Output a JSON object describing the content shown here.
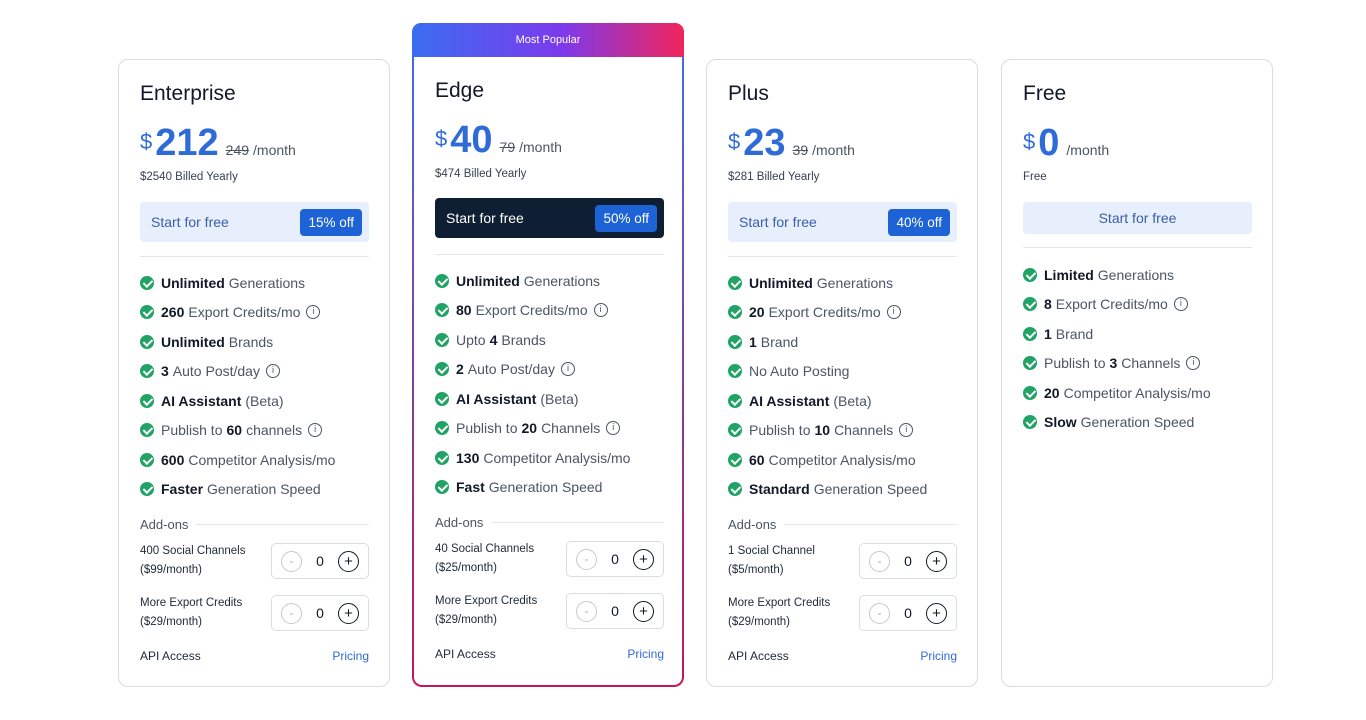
{
  "plans": [
    {
      "name": "Enterprise",
      "currency": "$",
      "price": "212",
      "old_price": "249",
      "per": "/month",
      "billed": "$2540 Billed Yearly",
      "cta_label": "Start for free",
      "discount": "15% off",
      "features": [
        {
          "bold": "Unlimited",
          "rest": "Generations",
          "info": false
        },
        {
          "bold": "260",
          "rest": "Export Credits/mo",
          "info": true
        },
        {
          "bold": "Unlimited",
          "rest": "Brands",
          "info": false
        },
        {
          "bold": "3",
          "rest": "Auto Post/day",
          "info": true
        },
        {
          "bold": "AI Assistant",
          "rest": "(Beta)",
          "info": false
        },
        {
          "pre": "Publish to",
          "bold": "60",
          "rest": "channels",
          "info": true
        },
        {
          "bold": "600",
          "rest": "Competitor Analysis/mo",
          "info": false
        },
        {
          "bold": "Faster",
          "rest": "Generation Speed",
          "info": false
        }
      ],
      "addons_title": "Add-ons",
      "addons": [
        {
          "label_line1": "400 Social Channels",
          "label_line2": "($99/month)",
          "minus": "-",
          "qty": "0",
          "plus": "+"
        },
        {
          "label_line1": "More Export Credits",
          "label_line2": "($29/month)",
          "minus": "-",
          "qty": "0",
          "plus": "+"
        }
      ],
      "api_label": "API Access",
      "api_link": "Pricing"
    },
    {
      "ribbon": "Most Popular",
      "name": "Edge",
      "currency": "$",
      "price": "40",
      "old_price": "79",
      "per": "/month",
      "billed": "$474 Billed Yearly",
      "cta_label": "Start for free",
      "discount": "50% off",
      "features": [
        {
          "bold": "Unlimited",
          "rest": "Generations",
          "info": false
        },
        {
          "bold": "80",
          "rest": "Export Credits/mo",
          "info": true
        },
        {
          "pre": "Upto",
          "bold": "4",
          "rest": "Brands",
          "info": false
        },
        {
          "bold": "2",
          "rest": "Auto Post/day",
          "info": true
        },
        {
          "bold": "AI Assistant",
          "rest": "(Beta)",
          "info": false
        },
        {
          "pre": "Publish to",
          "bold": "20",
          "rest": "Channels",
          "info": true
        },
        {
          "bold": "130",
          "rest": "Competitor Analysis/mo",
          "info": false
        },
        {
          "bold": "Fast",
          "rest": "Generation Speed",
          "info": false
        }
      ],
      "addons_title": "Add-ons",
      "addons": [
        {
          "label_line1": "40 Social Channels",
          "label_line2": "($25/month)",
          "minus": "-",
          "qty": "0",
          "plus": "+"
        },
        {
          "label_line1": "More Export Credits",
          "label_line2": "($29/month)",
          "minus": "-",
          "qty": "0",
          "plus": "+"
        }
      ],
      "api_label": "API Access",
      "api_link": "Pricing"
    },
    {
      "name": "Plus",
      "currency": "$",
      "price": "23",
      "old_price": "39",
      "per": "/month",
      "billed": "$281 Billed Yearly",
      "cta_label": "Start for free",
      "discount": "40% off",
      "features": [
        {
          "bold": "Unlimited",
          "rest": "Generations",
          "info": false
        },
        {
          "bold": "20",
          "rest": "Export Credits/mo",
          "info": true
        },
        {
          "bold": "1",
          "rest": "Brand",
          "info": false
        },
        {
          "pre": "No Auto Posting",
          "info": false
        },
        {
          "bold": "AI Assistant",
          "rest": "(Beta)",
          "info": false
        },
        {
          "pre": "Publish to",
          "bold": "10",
          "rest": "Channels",
          "info": true
        },
        {
          "bold": "60",
          "rest": "Competitor Analysis/mo",
          "info": false
        },
        {
          "bold": "Standard",
          "rest": "Generation Speed",
          "info": false
        }
      ],
      "addons_title": "Add-ons",
      "addons": [
        {
          "label_line1": "1 Social Channel",
          "label_line2": "($5/month)",
          "minus": "-",
          "qty": "0",
          "plus": "+"
        },
        {
          "label_line1": "More Export Credits",
          "label_line2": "($29/month)",
          "minus": "-",
          "qty": "0",
          "plus": "+"
        }
      ],
      "api_label": "API Access",
      "api_link": "Pricing"
    },
    {
      "name": "Free",
      "currency": "$",
      "price": "0",
      "per": "/month",
      "billed": "Free",
      "cta_label": "Start for free",
      "features": [
        {
          "bold": "Limited",
          "rest": "Generations",
          "info": false
        },
        {
          "bold": "8",
          "rest": "Export Credits/mo",
          "info": true
        },
        {
          "bold": "1",
          "rest": "Brand",
          "info": false
        },
        {
          "pre": "Publish to",
          "bold": "3",
          "rest": "Channels",
          "info": true
        },
        {
          "bold": "20",
          "rest": "Competitor Analysis/mo",
          "info": false
        },
        {
          "bold": "Slow",
          "rest": "Generation Speed",
          "info": false
        }
      ]
    }
  ],
  "icons": {
    "check": "check-circle-icon",
    "info": "info-circle-icon"
  },
  "colors": {
    "accent": "#2f6bd8",
    "check": "#21a366",
    "dark_cta": "#0f1f33",
    "badge": "#1d63d6"
  }
}
